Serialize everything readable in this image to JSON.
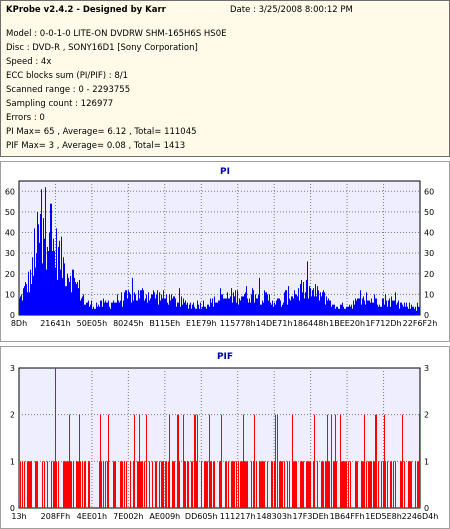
{
  "header": {
    "title": "KProbe v2.4.2 - Designed by Karr",
    "date": "Date : 3/25/2008 8:00:12 PM",
    "lines": [
      "Model : 0-0-1-0 LITE-ON DVDRW SHM-165H6S HS0E",
      "Disc : DVD-R , SONY16D1 [Sony Corporation]",
      "Speed : 4x",
      "ECC blocks sum (PI/PIF) : 8/1",
      "Scanned range : 0 - 2293755",
      "Sampling count : 126977",
      "Errors : 0",
      "PI Max= 65 , Average= 6.12 , Total= 111045",
      "PIF Max= 3 , Average= 0.08 , Total= 1413"
    ]
  },
  "chart_data": [
    {
      "type": "bar",
      "title": "PI",
      "color": "#0000ff",
      "bg": "#eeeeff",
      "ylim": [
        0,
        65
      ],
      "yticks": [
        "0",
        "10",
        "20",
        "30",
        "40",
        "50",
        "60"
      ],
      "xticks": [
        "8Dh",
        "21641h",
        "50E05h",
        "80245h",
        "B115Eh",
        "E1E79h",
        "115778h",
        "14DE71h",
        "186448h",
        "1BEE20h",
        "1F712Dh",
        "22F6F2h"
      ],
      "max": 65,
      "average": 6.12,
      "grid": true
    },
    {
      "type": "bar",
      "title": "PIF",
      "color": "#ff0000",
      "bg": "#eeeeff",
      "ylim": [
        0,
        3
      ],
      "yticks": [
        "0",
        "1",
        "2",
        "3"
      ],
      "xticks": [
        "13h",
        "208FFh",
        "4EE01h",
        "7E002h",
        "AE009h",
        "DD605h",
        "111217h",
        "148303h",
        "17F3DEh",
        "1B64FFh",
        "1ED5E8h",
        "2246D4h"
      ],
      "max": 3,
      "average": 0.08,
      "grid": true
    }
  ]
}
